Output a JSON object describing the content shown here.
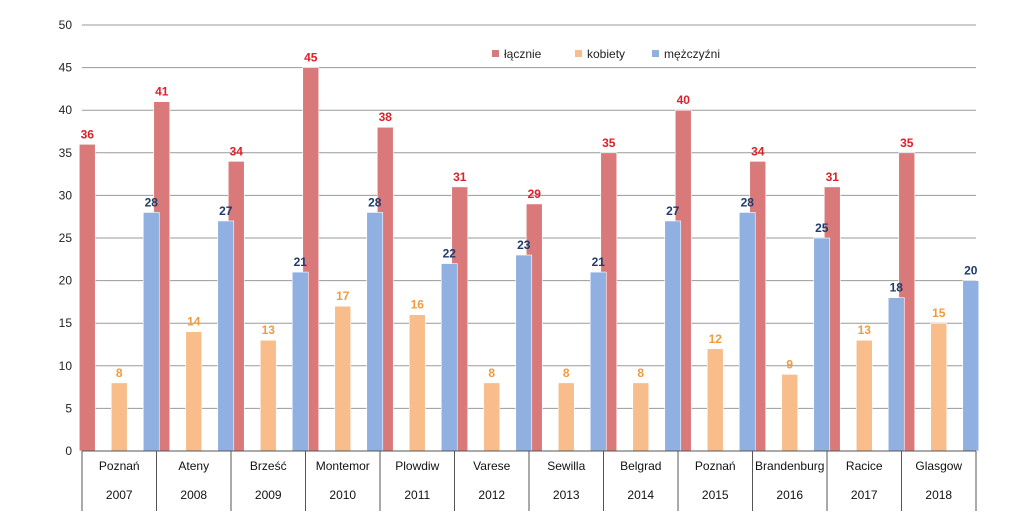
{
  "chart_data": {
    "type": "bar",
    "ylim": [
      0,
      50
    ],
    "yticks": [
      0,
      5,
      10,
      15,
      20,
      25,
      30,
      35,
      40,
      45,
      50
    ],
    "grid": true,
    "legend_position": "top-right",
    "categories": [
      "Poznań",
      "Ateny",
      "Brześć",
      "Montemor",
      "Plowdiw",
      "Varese",
      "Sewilla",
      "Belgrad",
      "Poznań",
      "Brandenburg",
      "Racice",
      "Glasgow"
    ],
    "years": [
      "2007",
      "2008",
      "2009",
      "2010",
      "2011",
      "2012",
      "2013",
      "2014",
      "2015",
      "2016",
      "2017",
      "2018"
    ],
    "series": [
      {
        "name": "łącznie",
        "color": "#d9797a",
        "label_color": "#e01e2a",
        "values": [
          36,
          41,
          34,
          45,
          38,
          31,
          29,
          35,
          40,
          34,
          31,
          35
        ]
      },
      {
        "name": "kobiety",
        "color": "#f8bd8b",
        "label_color": "#f29a3f",
        "values": [
          8,
          14,
          13,
          17,
          16,
          8,
          8,
          8,
          12,
          9,
          13,
          15
        ]
      },
      {
        "name": "mężczyźni",
        "color": "#8fb0e0",
        "label_color": "#1f3a6b",
        "values": [
          28,
          27,
          21,
          28,
          22,
          23,
          21,
          27,
          28,
          25,
          18,
          20
        ]
      }
    ]
  }
}
